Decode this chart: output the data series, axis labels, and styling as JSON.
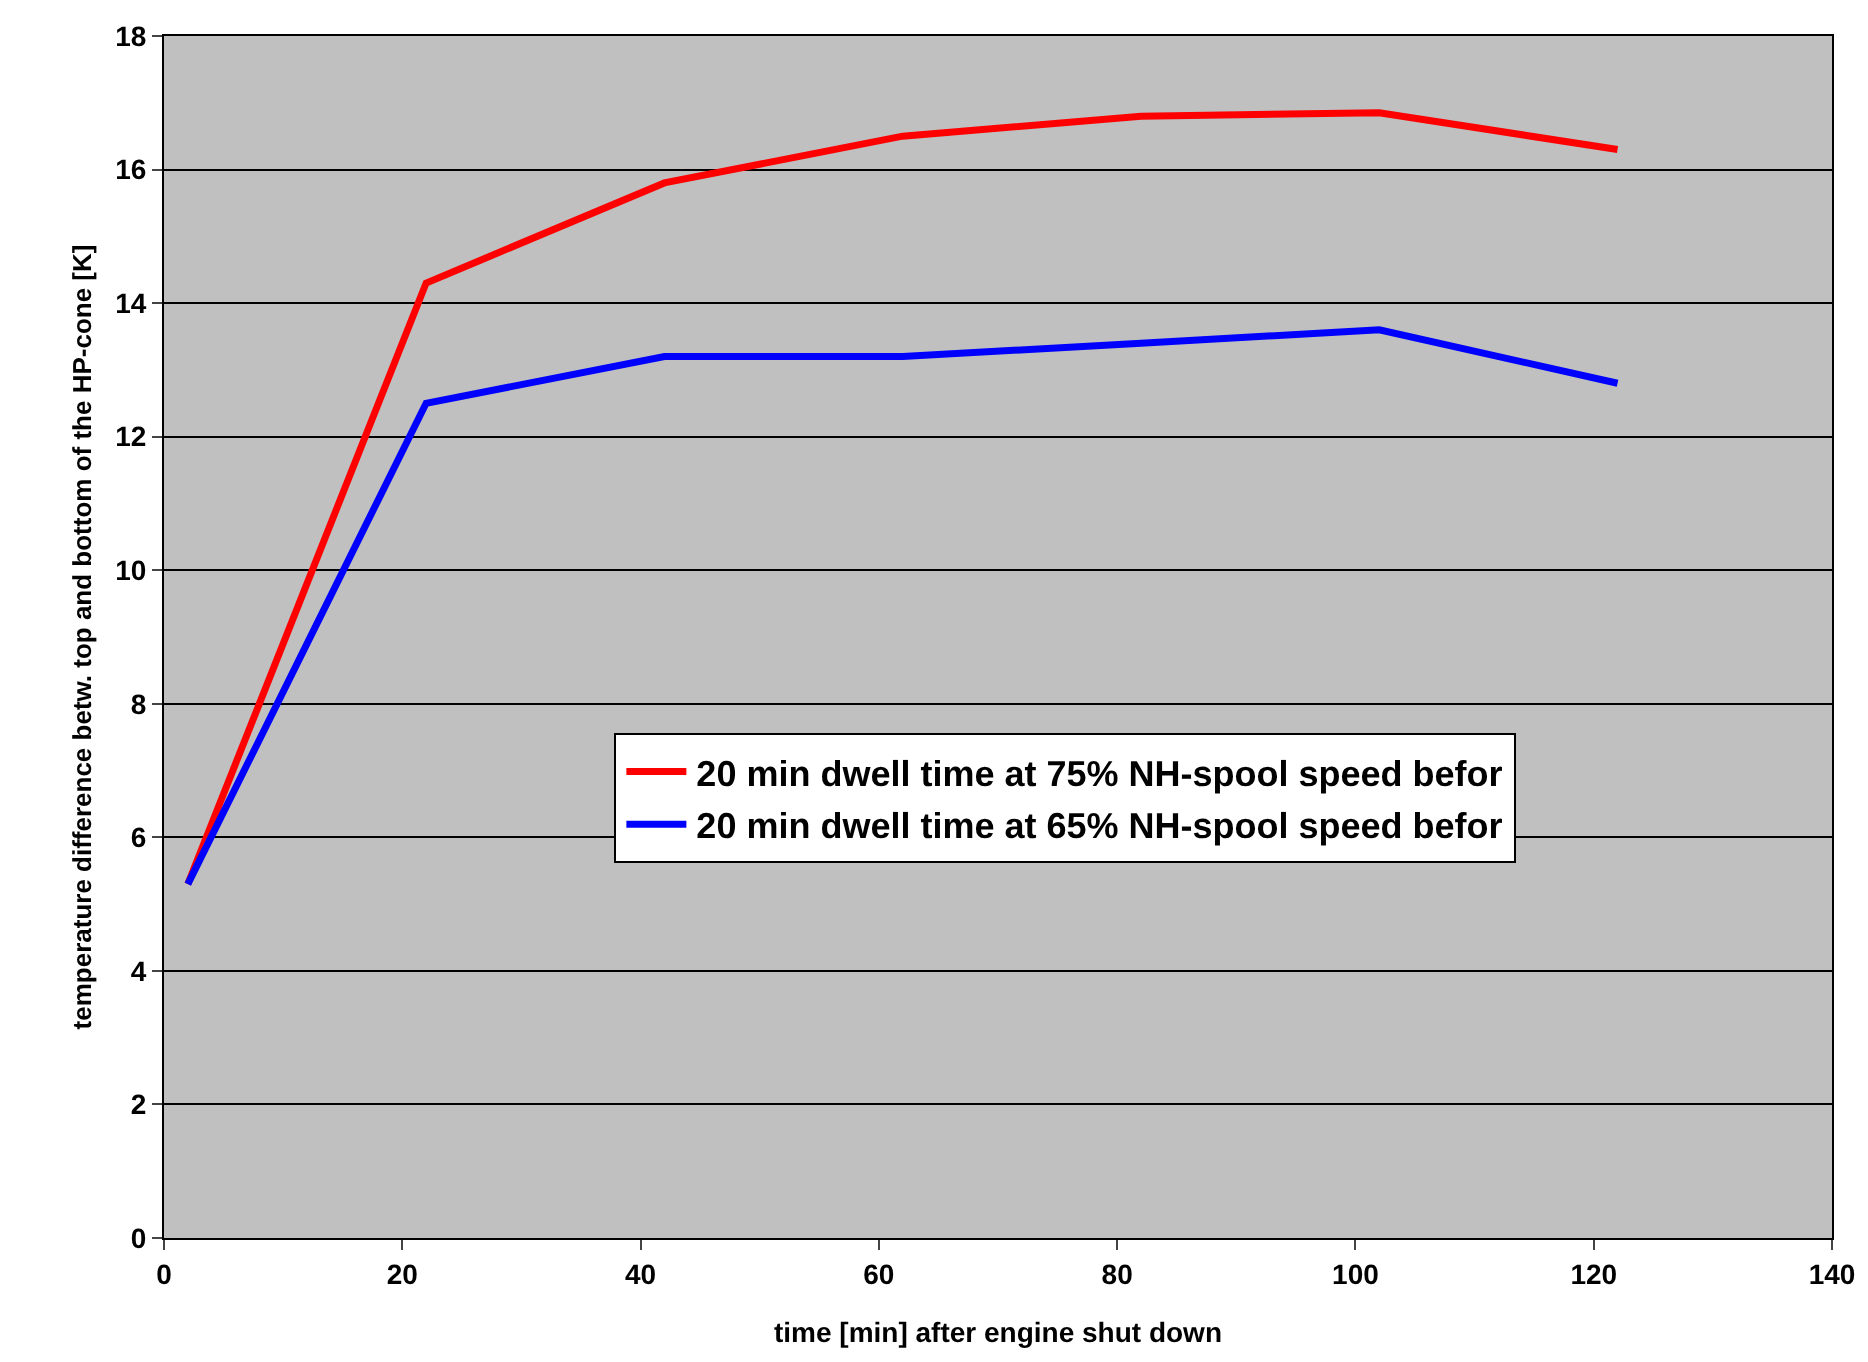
{
  "chart_data": {
    "type": "line",
    "xlabel": "time [min] after engine shut down",
    "ylabel": "temperature difference betw. top and bottom of the HP-cone [K]",
    "x": [
      2,
      22,
      42,
      62,
      82,
      102,
      122
    ],
    "series": [
      {
        "name": "20 min dwell time at 75% NH-spool speed befor",
        "color": "#ff0000",
        "values": [
          5.3,
          14.3,
          15.8,
          16.5,
          16.8,
          16.85,
          16.3
        ]
      },
      {
        "name": "20 min dwell time at 65% NH-spool speed befor",
        "color": "#0000ff",
        "values": [
          5.3,
          12.5,
          13.2,
          13.2,
          13.4,
          13.6,
          12.8
        ]
      }
    ],
    "xlim": [
      0,
      140
    ],
    "xticks": [
      0,
      20,
      40,
      60,
      80,
      100,
      120,
      140
    ],
    "ylim": [
      0,
      18
    ],
    "yticks": [
      0,
      2,
      4,
      6,
      8,
      10,
      12,
      14,
      16,
      18
    ],
    "grid": "y",
    "legend": "right",
    "marker": "none",
    "line_style": "solid"
  }
}
